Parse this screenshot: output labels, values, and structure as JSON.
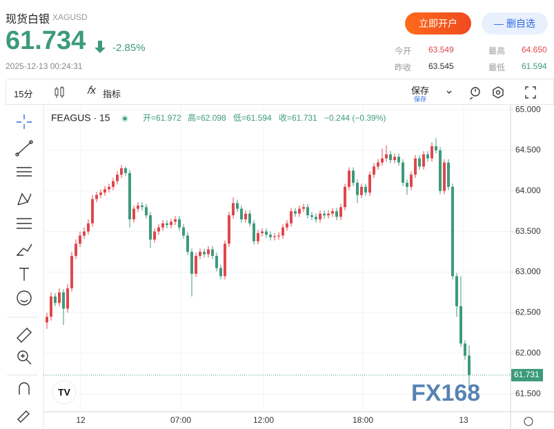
{
  "header": {
    "name": "现货白银",
    "symbol": "XAGUSD",
    "price": "61.734",
    "change": "-2.85%",
    "time": "2025-12-13 00:24:31",
    "open_account": "立即开户",
    "remove_watch": "删自选",
    "stats": [
      {
        "label": "今开",
        "value": "63.549"
      },
      {
        "label": "最高",
        "value": "64.650"
      },
      {
        "label": "昨收",
        "value": "63.545"
      },
      {
        "label": "最低",
        "value": "61.594"
      }
    ]
  },
  "toolbar": {
    "interval": "15分",
    "indicators": "指标",
    "save": "保存",
    "save_sub": "保存"
  },
  "chart_data": {
    "type": "candlestick",
    "title": "FEAGUS · 15",
    "info": [
      "开=61.972",
      "高=62.098",
      "低=61.594",
      "收=61.731",
      "−0.244 (−0.39%)"
    ],
    "up_color": "#e0474c",
    "down_color": "#3d9a7c",
    "candles": [
      [
        62.38,
        62.5,
        62.3,
        62.45
      ],
      [
        62.45,
        62.75,
        62.4,
        62.7
      ],
      [
        62.7,
        62.74,
        62.58,
        62.62
      ],
      [
        62.62,
        62.8,
        62.58,
        62.75
      ],
      [
        62.75,
        62.79,
        62.35,
        62.55
      ],
      [
        62.55,
        62.85,
        62.5,
        62.8
      ],
      [
        62.8,
        63.25,
        62.76,
        63.2
      ],
      [
        63.2,
        63.4,
        63.16,
        63.35
      ],
      [
        63.35,
        63.5,
        63.31,
        63.45
      ],
      [
        63.45,
        63.55,
        63.41,
        63.5
      ],
      [
        63.5,
        63.65,
        63.46,
        63.6
      ],
      [
        63.6,
        63.95,
        63.56,
        63.9
      ],
      [
        63.9,
        63.99,
        63.86,
        63.95
      ],
      [
        63.95,
        64.02,
        63.91,
        63.98
      ],
      [
        63.98,
        64.06,
        63.94,
        64.02
      ],
      [
        64.02,
        64.09,
        63.98,
        64.05
      ],
      [
        64.05,
        64.16,
        64.01,
        64.12
      ],
      [
        64.12,
        64.24,
        64.08,
        64.2
      ],
      [
        64.2,
        64.32,
        64.16,
        64.28
      ],
      [
        64.28,
        64.3,
        64.18,
        64.22
      ],
      [
        64.22,
        64.26,
        63.55,
        63.65
      ],
      [
        63.65,
        63.82,
        63.61,
        63.78
      ],
      [
        63.78,
        63.86,
        63.74,
        63.82
      ],
      [
        63.82,
        63.86,
        63.76,
        63.8
      ],
      [
        63.8,
        63.84,
        63.66,
        63.7
      ],
      [
        63.7,
        63.74,
        63.3,
        63.4
      ],
      [
        63.4,
        63.54,
        63.36,
        63.5
      ],
      [
        63.5,
        63.59,
        63.46,
        63.55
      ],
      [
        63.55,
        63.64,
        63.51,
        63.6
      ],
      [
        63.6,
        63.64,
        63.54,
        63.58
      ],
      [
        63.58,
        63.66,
        63.54,
        63.62
      ],
      [
        63.62,
        63.69,
        63.58,
        63.65
      ],
      [
        63.65,
        63.69,
        63.51,
        63.55
      ],
      [
        63.55,
        63.59,
        63.41,
        63.45
      ],
      [
        63.45,
        63.49,
        63.21,
        63.25
      ],
      [
        63.25,
        63.29,
        62.7,
        62.98
      ],
      [
        62.98,
        63.24,
        62.94,
        63.2
      ],
      [
        63.2,
        63.29,
        63.16,
        63.25
      ],
      [
        63.25,
        63.29,
        63.18,
        63.22
      ],
      [
        63.22,
        63.32,
        63.18,
        63.28
      ],
      [
        63.28,
        63.32,
        63.16,
        63.2
      ],
      [
        63.2,
        63.24,
        63.01,
        63.05
      ],
      [
        63.05,
        63.09,
        62.91,
        62.95
      ],
      [
        62.95,
        63.39,
        62.91,
        63.35
      ],
      [
        63.35,
        63.74,
        63.31,
        63.7
      ],
      [
        63.7,
        63.92,
        63.66,
        63.85
      ],
      [
        63.85,
        63.89,
        63.74,
        63.78
      ],
      [
        63.78,
        63.82,
        63.61,
        63.65
      ],
      [
        63.65,
        63.76,
        63.61,
        63.72
      ],
      [
        63.72,
        63.76,
        63.56,
        63.6
      ],
      [
        63.6,
        63.64,
        63.34,
        63.38
      ],
      [
        63.38,
        63.52,
        63.34,
        63.48
      ],
      [
        63.48,
        63.54,
        63.44,
        63.5
      ],
      [
        63.5,
        63.54,
        63.42,
        63.46
      ],
      [
        63.46,
        63.5,
        63.39,
        63.43
      ],
      [
        63.43,
        63.48,
        63.39,
        63.44
      ],
      [
        63.44,
        63.49,
        63.4,
        63.45
      ],
      [
        63.45,
        63.59,
        63.41,
        63.55
      ],
      [
        63.55,
        63.64,
        63.51,
        63.6
      ],
      [
        63.6,
        63.79,
        63.56,
        63.75
      ],
      [
        63.75,
        63.79,
        63.68,
        63.72
      ],
      [
        63.72,
        63.82,
        63.68,
        63.78
      ],
      [
        63.78,
        63.84,
        63.74,
        63.8
      ],
      [
        63.8,
        63.84,
        63.66,
        63.7
      ],
      [
        63.7,
        63.74,
        63.64,
        63.68
      ],
      [
        63.68,
        63.72,
        63.61,
        63.65
      ],
      [
        63.65,
        63.76,
        63.61,
        63.72
      ],
      [
        63.72,
        63.76,
        63.66,
        63.7
      ],
      [
        63.7,
        63.76,
        63.66,
        63.72
      ],
      [
        63.72,
        63.79,
        63.68,
        63.75
      ],
      [
        63.75,
        63.79,
        63.64,
        63.68
      ],
      [
        63.68,
        63.84,
        63.64,
        63.8
      ],
      [
        63.8,
        64.09,
        63.76,
        64.05
      ],
      [
        64.05,
        64.29,
        64.01,
        64.25
      ],
      [
        64.25,
        64.29,
        64.06,
        64.1
      ],
      [
        64.1,
        64.14,
        63.85,
        63.95
      ],
      [
        63.95,
        64.09,
        63.91,
        64.05
      ],
      [
        64.05,
        64.09,
        63.94,
        63.98
      ],
      [
        63.98,
        64.24,
        63.94,
        64.2
      ],
      [
        64.2,
        64.34,
        64.16,
        64.3
      ],
      [
        64.3,
        64.39,
        64.26,
        64.35
      ],
      [
        64.35,
        64.52,
        64.31,
        64.4
      ],
      [
        64.4,
        64.56,
        64.36,
        64.45
      ],
      [
        64.45,
        64.49,
        64.34,
        64.38
      ],
      [
        64.38,
        64.46,
        64.34,
        64.42
      ],
      [
        64.42,
        64.46,
        64.31,
        64.35
      ],
      [
        64.35,
        64.39,
        64.06,
        64.1
      ],
      [
        64.1,
        64.14,
        63.95,
        64.05
      ],
      [
        64.05,
        64.24,
        64.01,
        64.2
      ],
      [
        64.2,
        64.44,
        64.16,
        64.4
      ],
      [
        64.4,
        64.44,
        64.26,
        64.3
      ],
      [
        64.3,
        64.49,
        64.26,
        64.45
      ],
      [
        64.45,
        64.49,
        64.36,
        64.4
      ],
      [
        64.4,
        64.6,
        64.36,
        64.55
      ],
      [
        64.55,
        64.65,
        64.46,
        64.5
      ],
      [
        64.5,
        64.54,
        63.96,
        64.0
      ],
      [
        64.0,
        64.39,
        63.96,
        64.35
      ],
      [
        64.35,
        64.39,
        64.01,
        64.05
      ],
      [
        64.05,
        64.09,
        62.91,
        62.95
      ],
      [
        62.95,
        62.99,
        62.45,
        62.58
      ],
      [
        62.58,
        62.95,
        62.08,
        62.12
      ],
      [
        62.12,
        62.16,
        61.92,
        61.97
      ],
      [
        61.972,
        62.098,
        61.594,
        61.731
      ]
    ],
    "current": {
      "value": 61.731,
      "label": "61.731"
    },
    "ylim": [
      61.28,
      65.06
    ],
    "yticks": [
      {
        "value": 65,
        "label": "65.000"
      },
      {
        "value": 64.5,
        "label": "64.500"
      },
      {
        "value": 64,
        "label": "64.000"
      },
      {
        "value": 63.5,
        "label": "63.500"
      },
      {
        "value": 63,
        "label": "63.000"
      },
      {
        "value": 62.5,
        "label": "62.500"
      },
      {
        "value": 62,
        "label": "62.000"
      },
      {
        "value": 61.5,
        "label": "61.500"
      }
    ],
    "xticks": [
      "12",
      "07:00",
      "12:00",
      "18:00",
      "13"
    ],
    "grid": true,
    "watermark": "FX168"
  }
}
